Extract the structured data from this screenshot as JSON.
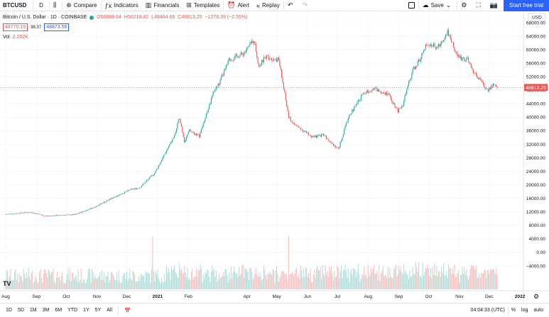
{
  "toolbar": {
    "symbol": "BTCUSD",
    "interval": "D",
    "compare": "Compare",
    "indicators": "Indicators",
    "financials": "Financials",
    "templates": "Templates",
    "alert": "Alert",
    "replay": "Replay",
    "save": "Save",
    "start_trial": "Start free trial"
  },
  "legend": {
    "title": "Bitcoin / U.S. Dollar · 1D · COINBASE",
    "open": "O50089.64",
    "high": "H50218.42",
    "low": "L48464.66",
    "close": "C48813.25",
    "change": "−1276.39 (−2.55%)",
    "bid": "48775.19",
    "spread": "98.37",
    "ask": "48873.56",
    "vol_label": "Vol",
    "vol_value": "2.202K"
  },
  "axis": {
    "currency": "USD",
    "last_price": "48813.25"
  },
  "bottombar": {
    "ranges": [
      "1D",
      "5D",
      "1M",
      "3M",
      "6M",
      "YTD",
      "1Y",
      "5Y",
      "All"
    ],
    "time": "04:04:33 (UTC)",
    "percent": "%",
    "log": "log",
    "auto": "auto"
  },
  "colors": {
    "up": "#26a69a",
    "down": "#ef5350",
    "accent": "#2962ff"
  },
  "chart_data": {
    "type": "candlestick",
    "price_ticks": [
      68000,
      64000,
      60000,
      56000,
      52000,
      48000,
      44000,
      40000,
      36000,
      32000,
      28000,
      24000,
      20000,
      16000,
      12000,
      8000,
      4000,
      0,
      -4000
    ],
    "price_tick_labels": [
      "68000.00",
      "64000.00",
      "60000.00",
      "56000.00",
      "52000.00",
      "48000.00",
      "44000.00",
      "40000.00",
      "36000.00",
      "32000.00",
      "28000.00",
      "24000.00",
      "20000.00",
      "16000.00",
      "12000.00",
      "8000.00",
      "4000.00",
      "0.00",
      "−4000.00"
    ],
    "time_labels": [
      "Aug",
      "Sep",
      "Oct",
      "Nov",
      "Dec",
      "2021",
      "Feb",
      "Apr",
      "May",
      "Jun",
      "Jul",
      "Aug",
      "Sep",
      "Oct",
      "Nov",
      "Dec",
      "2022"
    ],
    "time_label_days": [
      0,
      31,
      61,
      92,
      122,
      153,
      184,
      243,
      273,
      304,
      334,
      365,
      396,
      426,
      457,
      487,
      518
    ],
    "price_path_days": [
      0,
      25,
      40,
      70,
      90,
      110,
      125,
      135,
      150,
      160,
      170,
      175,
      180,
      185,
      195,
      210,
      215,
      225,
      240,
      250,
      255,
      262,
      275,
      285,
      290,
      300,
      310,
      320,
      330,
      335,
      345,
      360,
      370,
      385,
      395,
      400,
      410,
      415,
      425,
      435,
      445,
      455,
      465,
      470,
      480,
      485,
      490,
      495
    ],
    "price_path_values": [
      11300,
      11900,
      10800,
      11200,
      13500,
      16500,
      18500,
      19200,
      23500,
      29000,
      34500,
      40000,
      33000,
      36000,
      34500,
      48000,
      50000,
      57000,
      59000,
      63000,
      55000,
      58000,
      57000,
      40000,
      38000,
      36000,
      34000,
      35000,
      32000,
      30500,
      40000,
      47000,
      48500,
      47000,
      42000,
      44000,
      54000,
      56000,
      62000,
      60500,
      65500,
      58000,
      57000,
      54000,
      50000,
      48000,
      49500,
      48813
    ],
    "volume_spike_days": [
      148,
      285
    ],
    "last_price": 48813.25
  }
}
